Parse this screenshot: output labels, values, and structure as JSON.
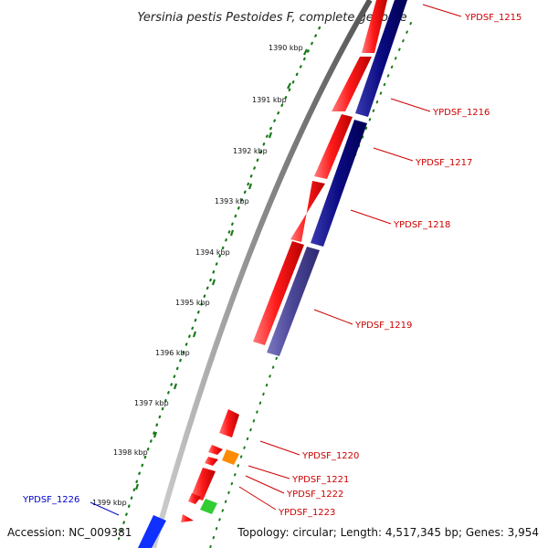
{
  "title": "Yersinia pestis Pestoides F, complete genome",
  "footer": {
    "accession": "Accession: NC_009381",
    "summary": "Topology: circular; Length: 4,517,345 bp; Genes: 3,954"
  },
  "colors": {
    "backbone": "#8a8a8a",
    "ticks": "#1a7a1a",
    "cds_forward": "#ff1a1a",
    "cds_reverse": "#0a0a82",
    "cds_reverse_light": "#4a4696",
    "rna_orange": "#ff8c00",
    "rna_green": "#33cc33",
    "label_red": "#cc0000",
    "label_blue": "#0000cc",
    "feature_blue": "#1030ff"
  },
  "ticks": [
    {
      "label": "1390 kbp"
    },
    {
      "label": "1391 kbp"
    },
    {
      "label": "1392 kbp"
    },
    {
      "label": "1393 kbp"
    },
    {
      "label": "1394 kbp"
    },
    {
      "label": "1395 kbp"
    },
    {
      "label": "1396 kbp"
    },
    {
      "label": "1397 kbp"
    },
    {
      "label": "1398 kbp"
    },
    {
      "label": "1399 kbp"
    }
  ],
  "gene_labels": [
    {
      "text": "YPDSF_1215",
      "color": "label_red"
    },
    {
      "text": "YPDSF_1216",
      "color": "label_red"
    },
    {
      "text": "YPDSF_1217",
      "color": "label_red"
    },
    {
      "text": "YPDSF_1218",
      "color": "label_red"
    },
    {
      "text": "YPDSF_1219",
      "color": "label_red"
    },
    {
      "text": "YPDSF_1220",
      "color": "label_red"
    },
    {
      "text": "YPDSF_1221",
      "color": "label_red"
    },
    {
      "text": "YPDSF_1222",
      "color": "label_red"
    },
    {
      "text": "YPDSF_1223",
      "color": "label_red"
    },
    {
      "text": "YPDSF_1226",
      "color": "label_blue"
    }
  ]
}
